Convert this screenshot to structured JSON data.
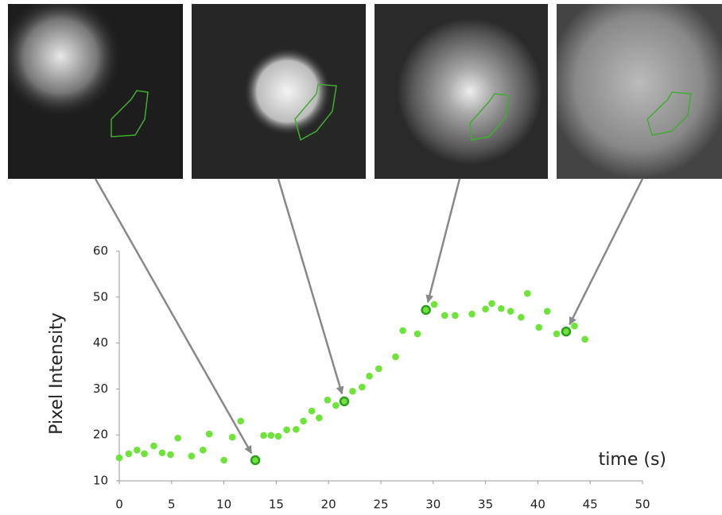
{
  "chart_data": {
    "type": "scatter",
    "x_label": "time (s)",
    "y_label": "Pixel Intensity",
    "x": [
      0,
      0.9,
      1.7,
      2.4,
      3.3,
      4.1,
      4.9,
      5.6,
      6.9,
      8.0,
      8.6,
      10.0,
      10.8,
      11.6,
      13.0,
      13.8,
      14.5,
      15.2,
      16.0,
      16.9,
      17.6,
      18.4,
      19.1,
      19.9,
      20.7,
      21.5,
      22.3,
      23.2,
      23.9,
      24.8,
      26.4,
      27.1,
      28.5,
      29.3,
      30.1,
      31.1,
      32.1,
      33.7,
      35.0,
      35.6,
      36.5,
      37.4,
      38.4,
      39.0,
      40.1,
      40.9,
      41.8,
      42.7,
      43.5,
      44.5
    ],
    "values": [
      15.0,
      15.9,
      16.7,
      15.9,
      17.6,
      16.1,
      15.7,
      19.3,
      15.4,
      16.7,
      20.2,
      14.5,
      19.5,
      23.0,
      14.5,
      19.9,
      19.9,
      19.7,
      21.1,
      21.2,
      23.0,
      25.2,
      23.7,
      27.6,
      26.4,
      27.3,
      29.5,
      30.4,
      32.8,
      34.4,
      37.0,
      42.7,
      42.0,
      47.2,
      48.4,
      46.0,
      46.0,
      46.3,
      47.4,
      48.6,
      47.5,
      46.9,
      45.6,
      50.8,
      43.4,
      46.9,
      42.0,
      42.5,
      43.7,
      40.8
    ],
    "color": "#6ee33a",
    "highlight_color": "#2f9e1e",
    "highlighted": [
      14,
      25,
      33,
      47
    ],
    "xlim": [
      0,
      50
    ],
    "xticks": [
      0,
      5,
      10,
      15,
      20,
      25,
      30,
      35,
      40,
      45,
      50
    ],
    "ylim": [
      10,
      60
    ],
    "yticks": [
      10,
      20,
      30,
      40,
      50,
      60
    ],
    "grid": false
  }
}
